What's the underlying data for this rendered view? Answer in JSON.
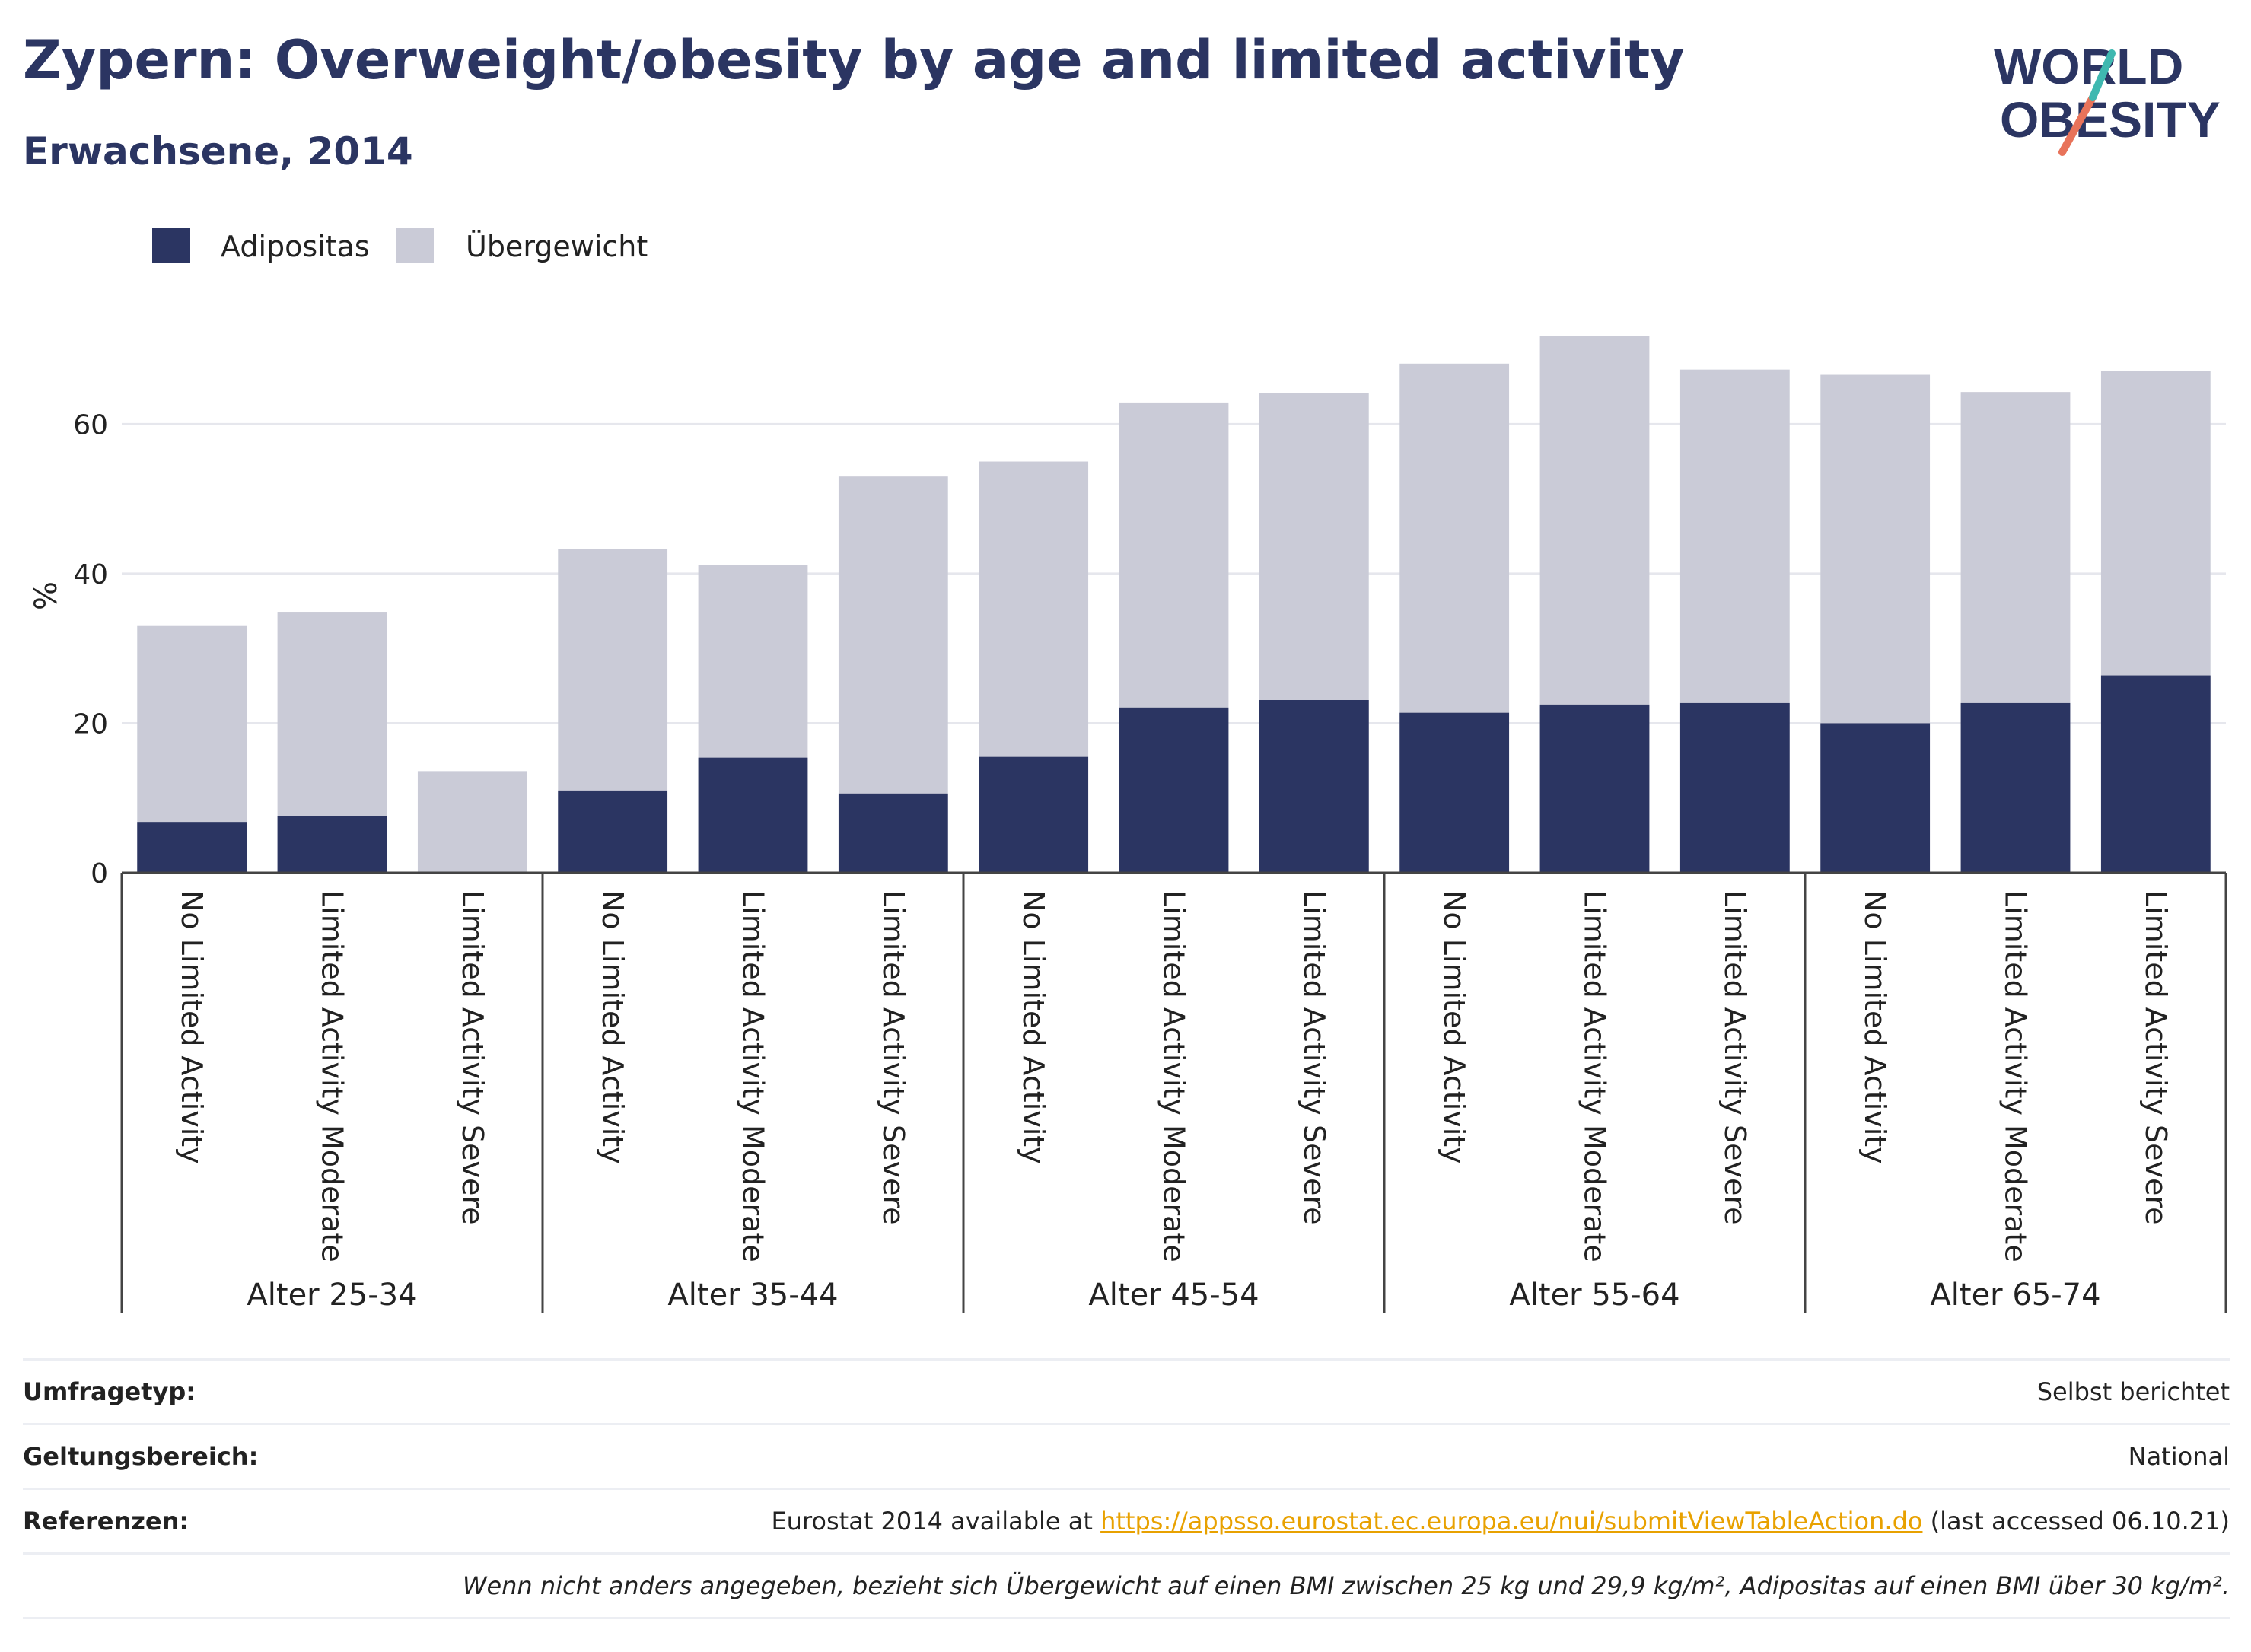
{
  "header": {
    "title": "Zypern: Overweight/obesity by age and limited activity",
    "subtitle": "Erwachsene, 2014"
  },
  "logo": {
    "line1": "WORLD",
    "line2": "OBESITY"
  },
  "colors": {
    "adipositas": "#2b3562",
    "uebergewicht": "#cacbd7",
    "title": "#2b3562",
    "accent_teal": "#3fb8b0",
    "accent_coral": "#e8735a"
  },
  "chart_data": {
    "type": "bar",
    "stacked": false,
    "overlay": true,
    "ylabel": "%",
    "xlabel": "",
    "ylim": [
      0,
      75
    ],
    "yticks": [
      0,
      20,
      40,
      60
    ],
    "grid": true,
    "legend_position": "top-left",
    "groups": [
      "Alter 25-34",
      "Alter 35-44",
      "Alter 45-54",
      "Alter 55-64",
      "Alter 65-74"
    ],
    "categories": [
      "No Limited Activity",
      "Limited Activity Moderate",
      "Limited Activity Severe"
    ],
    "series": [
      {
        "name": "Adipositas",
        "color": "#2b3562",
        "values": [
          [
            6.8,
            7.6,
            0
          ],
          [
            11.0,
            15.4,
            10.6
          ],
          [
            15.5,
            22.1,
            23.1
          ],
          [
            21.4,
            22.5,
            22.7
          ],
          [
            20.0,
            22.7,
            26.4
          ]
        ]
      },
      {
        "name": "Übergewicht",
        "color": "#cacbd7",
        "values": [
          [
            33.0,
            34.9,
            13.6
          ],
          [
            43.3,
            41.2,
            53.0
          ],
          [
            55.0,
            62.9,
            64.2
          ],
          [
            68.1,
            71.8,
            67.3
          ],
          [
            66.6,
            64.3,
            67.1
          ]
        ]
      }
    ]
  },
  "footer": {
    "rows": [
      {
        "label": "Umfragetyp:",
        "value": "Selbst berichtet"
      },
      {
        "label": "Geltungsbereich:",
        "value": "National"
      }
    ],
    "references_label": "Referenzen:",
    "references_prefix": "Eurostat 2014 available at ",
    "references_link": "https://appsso.eurostat.ec.europa.eu/nui/submitViewTableAction.do",
    "references_suffix": " (last accessed 06.10.21)",
    "note": "Wenn nicht anders angegeben, bezieht sich Übergewicht auf einen BMI zwischen 25 kg und 29,9 kg/m², Adipositas auf einen BMI über 30 kg/m²."
  }
}
